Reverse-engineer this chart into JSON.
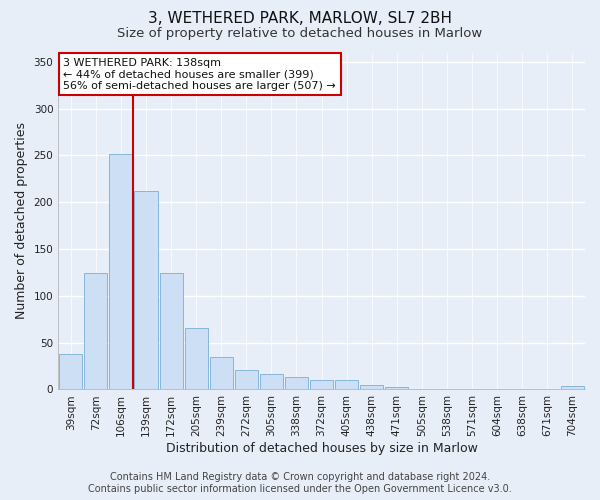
{
  "title": "3, WETHERED PARK, MARLOW, SL7 2BH",
  "subtitle": "Size of property relative to detached houses in Marlow",
  "xlabel": "Distribution of detached houses by size in Marlow",
  "ylabel": "Number of detached properties",
  "bar_labels": [
    "39sqm",
    "72sqm",
    "106sqm",
    "139sqm",
    "172sqm",
    "205sqm",
    "239sqm",
    "272sqm",
    "305sqm",
    "338sqm",
    "372sqm",
    "405sqm",
    "438sqm",
    "471sqm",
    "505sqm",
    "538sqm",
    "571sqm",
    "604sqm",
    "638sqm",
    "671sqm",
    "704sqm"
  ],
  "bar_values": [
    38,
    124,
    252,
    212,
    124,
    66,
    35,
    21,
    16,
    13,
    10,
    10,
    5,
    3,
    1,
    1,
    0,
    0,
    0,
    0,
    4
  ],
  "bar_color": "#ccdff5",
  "bar_edge_color": "#7aafd4",
  "vline_index": 2.5,
  "vline_color": "#cc0000",
  "annotation_title": "3 WETHERED PARK: 138sqm",
  "annotation_line1": "← 44% of detached houses are smaller (399)",
  "annotation_line2": "56% of semi-detached houses are larger (507) →",
  "annotation_box_facecolor": "#ffffff",
  "annotation_box_edgecolor": "#cc0000",
  "ylim": [
    0,
    360
  ],
  "yticks": [
    0,
    50,
    100,
    150,
    200,
    250,
    300,
    350
  ],
  "footer1": "Contains HM Land Registry data © Crown copyright and database right 2024.",
  "footer2": "Contains public sector information licensed under the Open Government Licence v3.0.",
  "bg_color": "#e8eef8",
  "plot_bg_color": "#e8eef8",
  "grid_color": "#ffffff",
  "title_fontsize": 11,
  "subtitle_fontsize": 9.5,
  "axis_label_fontsize": 9,
  "tick_fontsize": 7.5,
  "annotation_fontsize": 8,
  "footer_fontsize": 7
}
